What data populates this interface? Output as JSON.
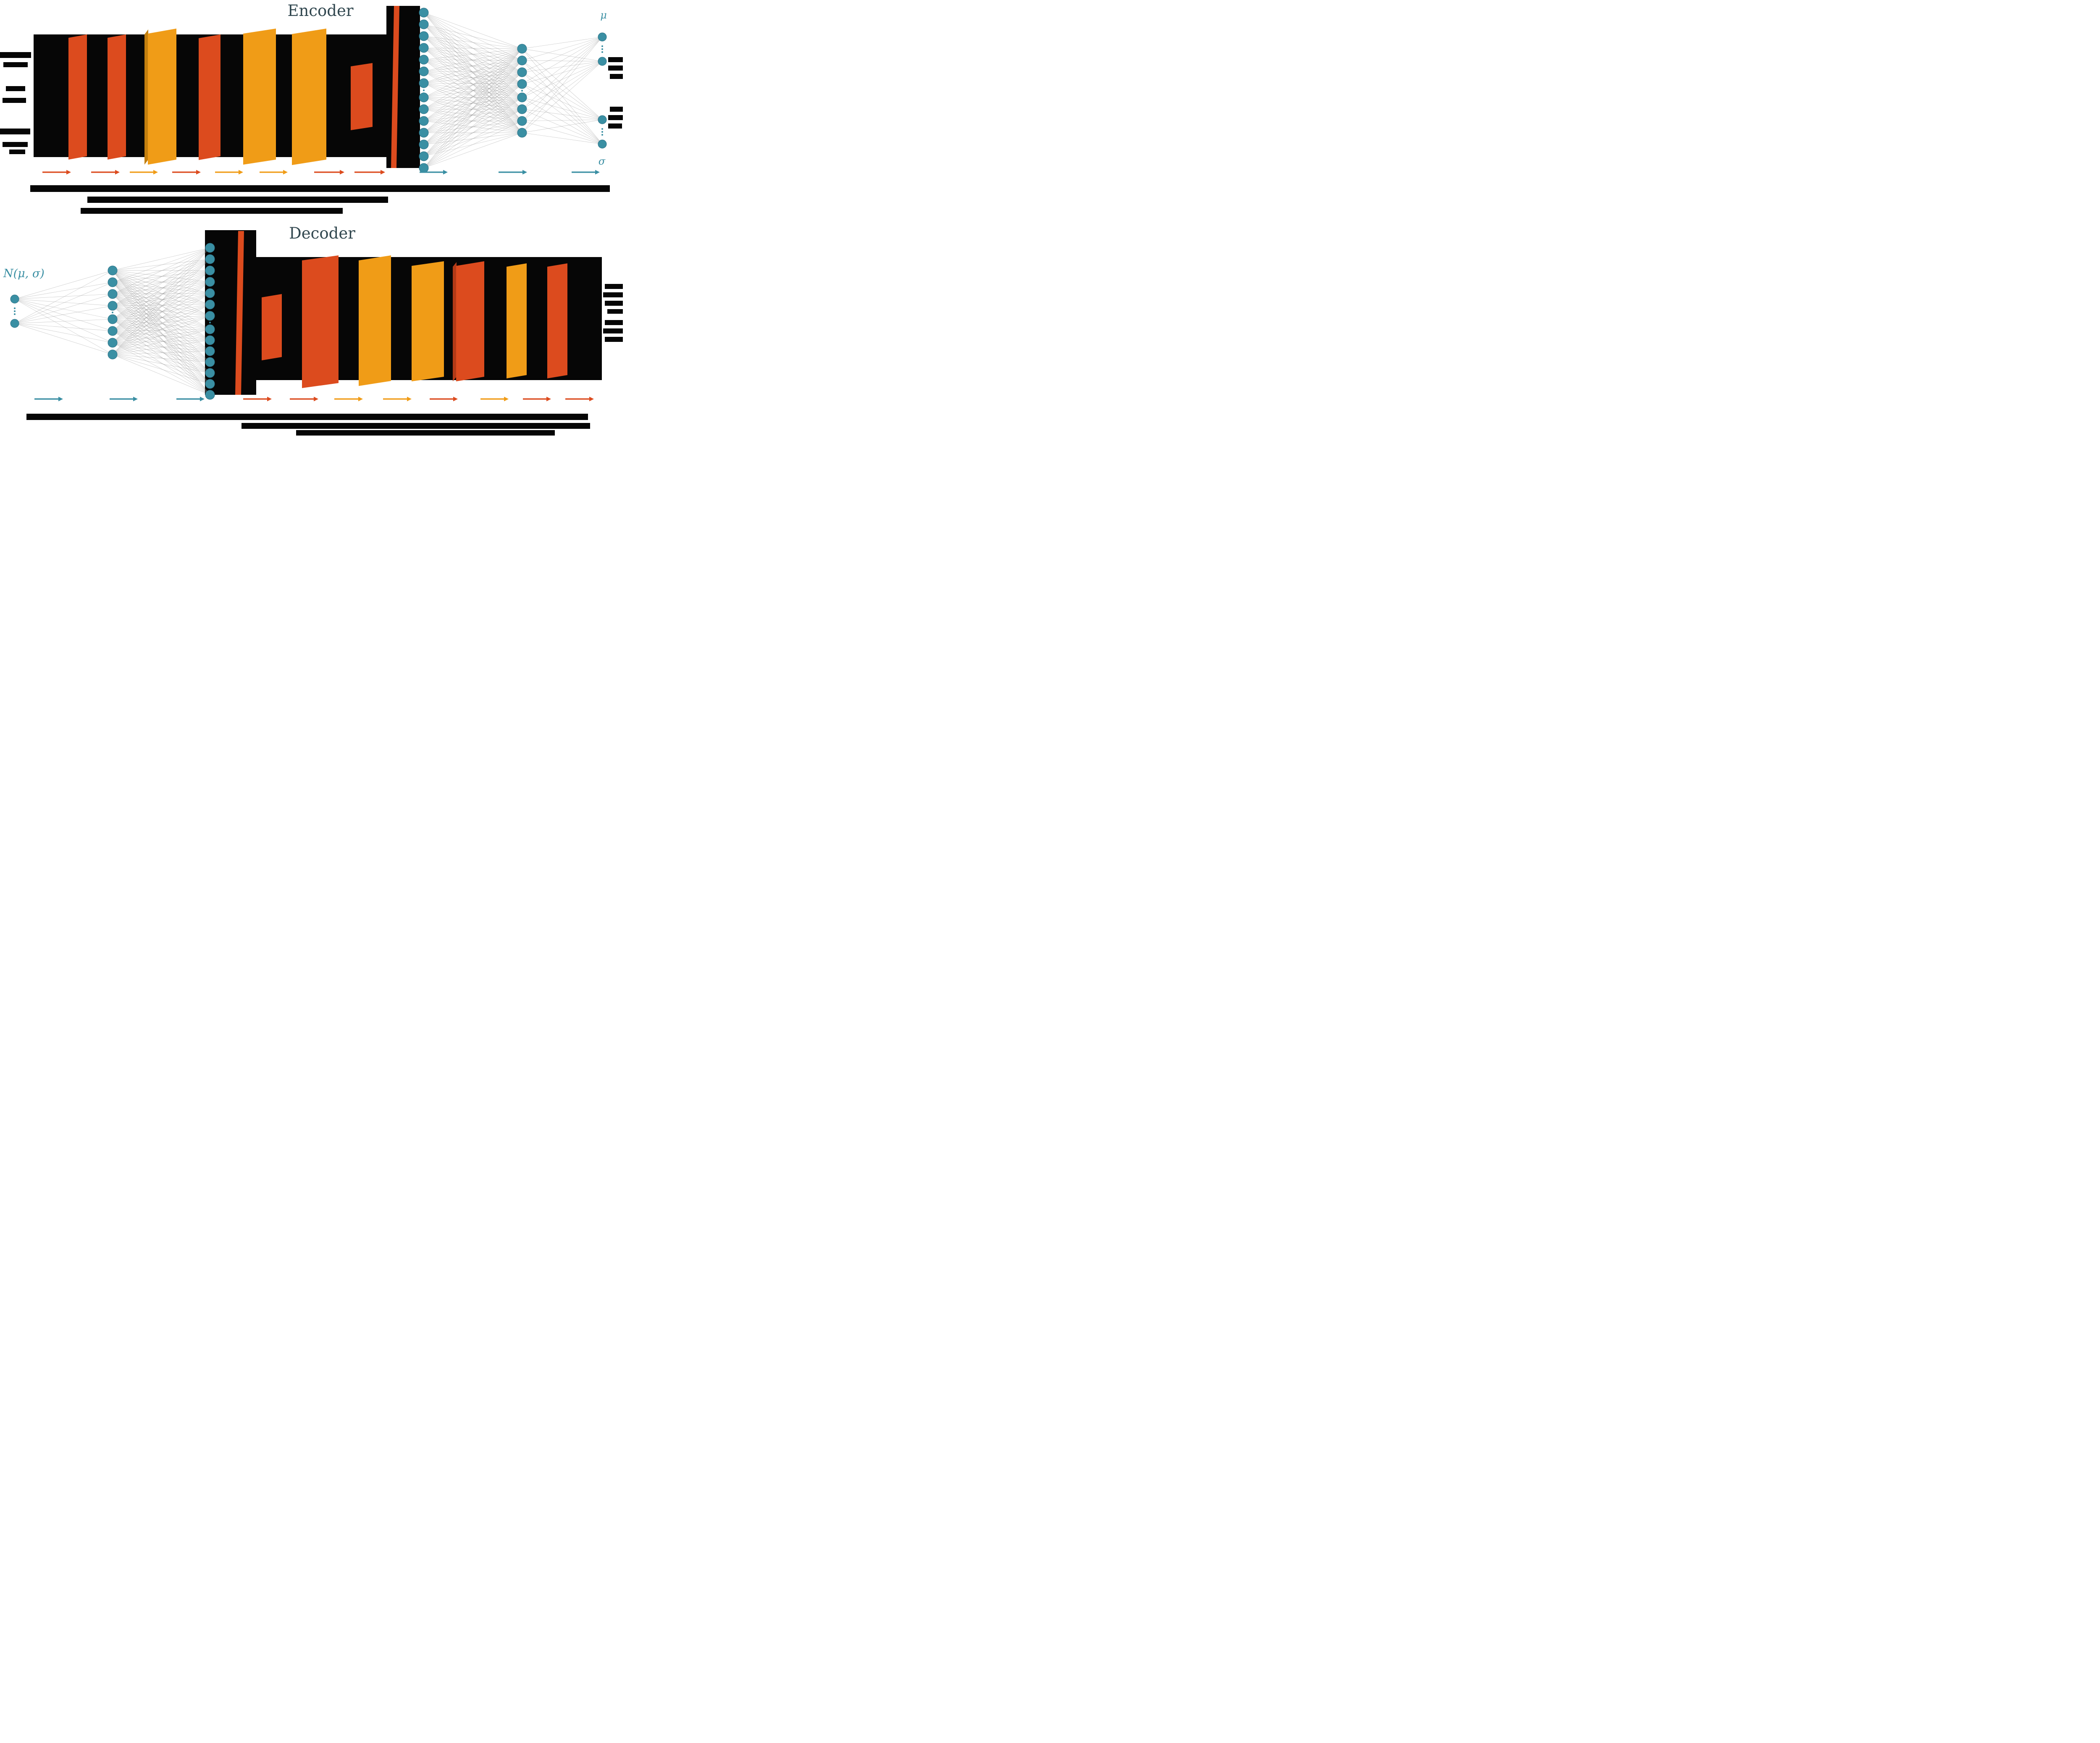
{
  "figure": {
    "encoder": {
      "title": "Encoder",
      "mu_label": "μ",
      "sigma_label": "σ"
    },
    "decoder": {
      "title": "Decoder",
      "latent_label": "N(μ, σ)"
    }
  },
  "colors": {
    "conv_slab": "#DC4B1E",
    "conv_slab_dark": "#B23A17",
    "pool_slab": "#F09C17",
    "pool_slab_dark": "#C37F0E",
    "node": "#3A8FA3",
    "edge": "#8C8C8C",
    "black": "#060606",
    "title_text": "#31474F"
  },
  "diagram": {
    "type": "variational-autoencoder-architecture",
    "encoder_slabs": [
      "conv",
      "conv",
      "pool",
      "conv",
      "pool",
      "pool",
      "conv",
      "flatten"
    ],
    "decoder_slabs": [
      "unflatten",
      "conv",
      "conv",
      "pool",
      "pool",
      "conv",
      "pool",
      "conv"
    ],
    "encoder_fc_layer_nodes": [
      14,
      8
    ],
    "encoder_outputs": [
      "μ",
      "σ"
    ],
    "decoder_fc_layer_nodes": [
      2,
      8,
      14
    ]
  }
}
